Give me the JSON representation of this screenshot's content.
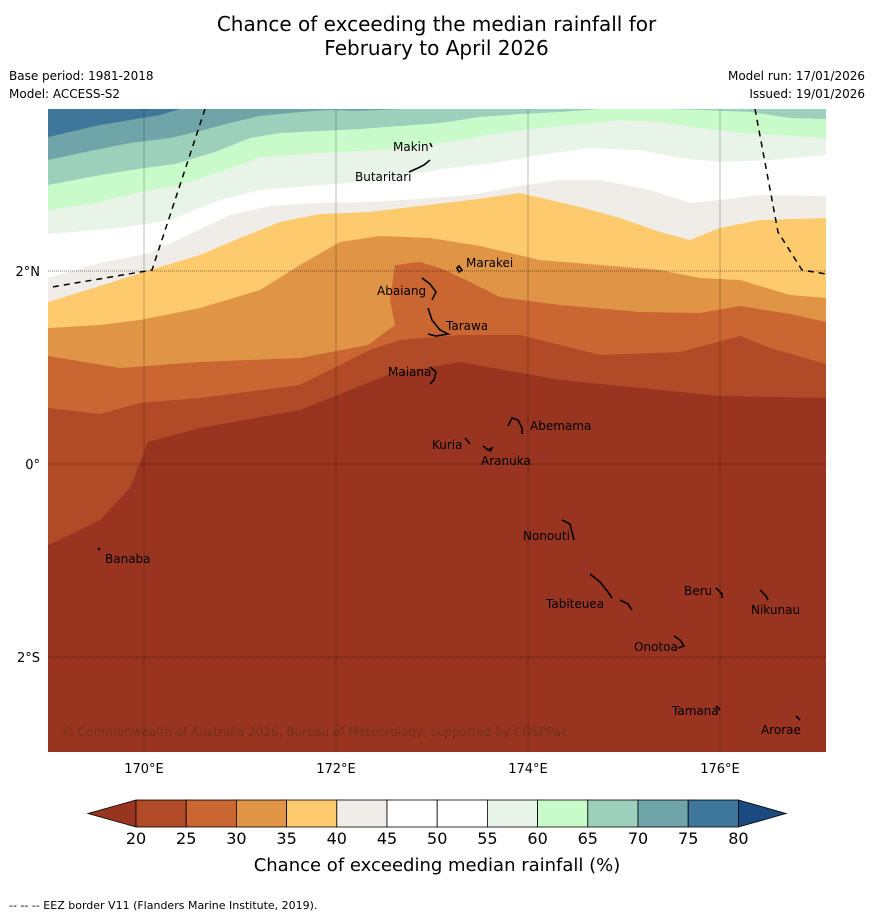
{
  "header": {
    "title_line1": "Chance of exceeding the median rainfall for",
    "title_line2": "February to April 2026",
    "base_period": "Base period: 1981-2018",
    "model": "Model: ACCESS-S2",
    "model_run": "Model run: 17/01/2026",
    "issued": "Issued: 19/01/2026"
  },
  "map": {
    "lon_labels": [
      "170°E",
      "172°E",
      "174°E",
      "176°E"
    ],
    "lat_labels": [
      "2°N",
      "0°",
      "2°S"
    ],
    "places": {
      "makin": "Makin",
      "butaritari": "Butaritari",
      "marakei": "Marakei",
      "abaiang": "Abaiang",
      "tarawa": "Tarawa",
      "maiana": "Maiana",
      "abemama": "Abemama",
      "kuria": "Kuria",
      "aranuka": "Aranuka",
      "nonouti": "Nonouti",
      "banaba": "Banaba",
      "beru": "Beru",
      "nikunau": "Nikunau",
      "tabiteuea": "Tabiteuea",
      "onotoa": "Onotoa",
      "tamana": "Tamana",
      "arorae": "Arorae"
    },
    "copyright": "© Commonwealth of Australia 2026, Bureau of Meteorology, supported by COSPPac"
  },
  "colorbar": {
    "ticks": [
      "20",
      "25",
      "30",
      "35",
      "40",
      "45",
      "50",
      "55",
      "60",
      "65",
      "70",
      "75",
      "80"
    ],
    "colors": [
      "#98341f",
      "#b04a27",
      "#c96631",
      "#e09446",
      "#fdcb6e",
      "#f0ece7",
      "#ffffff",
      "#ffffff",
      "#e9f4e9",
      "#c8fbc9",
      "#9cd0bb",
      "#6fa5a8",
      "#3e7799",
      "#1a4a80"
    ],
    "title": "Chance of exceeding median rainfall (%)"
  },
  "footnote": "--  --  -- EEZ border V11 (Flanders Marine Institute, 2019)."
}
